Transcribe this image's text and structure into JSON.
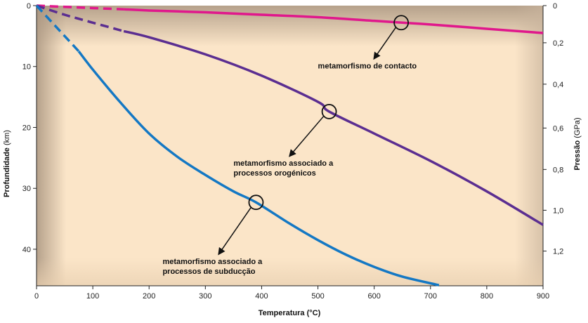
{
  "chart_data": {
    "type": "line",
    "xlabel": "Temperatura (°C)",
    "ylabel_left_bold": "Profundidade",
    "ylabel_left_unit": "(km)",
    "ylabel_right_bold": "Pressão",
    "ylabel_right_unit": "(GPa)",
    "xlim": [
      0,
      900
    ],
    "ylim": [
      0,
      46
    ],
    "x_ticks": [
      0,
      100,
      200,
      300,
      400,
      500,
      600,
      700,
      800,
      900
    ],
    "y_ticks_left": [
      0,
      10,
      20,
      30,
      40
    ],
    "y_ticks_right": [
      "0",
      "0,2",
      "0,4",
      "0,6",
      "0,8",
      "1,0",
      "1,2"
    ],
    "y_ticks_right_positions_km": [
      0,
      6.1,
      12.9,
      20.1,
      26.9,
      33.6,
      40.3
    ],
    "series": [
      {
        "name": "metamorfismo de contacto",
        "color": "#e0188c",
        "dashed_until_x": 155,
        "points": [
          [
            0,
            0
          ],
          [
            100,
            0.4
          ],
          [
            155,
            0.6
          ],
          [
            200,
            0.8
          ],
          [
            300,
            1.1
          ],
          [
            400,
            1.5
          ],
          [
            500,
            1.9
          ],
          [
            600,
            2.5
          ],
          [
            650,
            2.8
          ],
          [
            700,
            3.1
          ],
          [
            800,
            3.8
          ],
          [
            900,
            4.5
          ]
        ],
        "marker_at": [
          648,
          2.8
        ],
        "annotation_lines": [
          "metamorfismo de contacto"
        ],
        "annotation_anchor": [
          500,
          10.3
        ]
      },
      {
        "name": "metamorfismo associado a processos orogénicos",
        "color": "#5b2e91",
        "dashed_until_x": 155,
        "points": [
          [
            0,
            0
          ],
          [
            50,
            1.5
          ],
          [
            100,
            2.8
          ],
          [
            155,
            4.2
          ],
          [
            200,
            5.2
          ],
          [
            300,
            8.0
          ],
          [
            400,
            11.5
          ],
          [
            500,
            15.8
          ],
          [
            520,
            17.4
          ],
          [
            600,
            21.0
          ],
          [
            700,
            25.5
          ],
          [
            800,
            30.5
          ],
          [
            900,
            36.0
          ]
        ],
        "marker_at": [
          520,
          17.4
        ],
        "annotation_lines": [
          "metamorfismo associado a",
          "processos orogénicos"
        ],
        "annotation_anchor": [
          350,
          26.3
        ]
      },
      {
        "name": "metamorfismo associado a processos de subducção",
        "color": "#1478c4",
        "dashed_until_x": 75,
        "points": [
          [
            0,
            0
          ],
          [
            40,
            4.0
          ],
          [
            75,
            7.5
          ],
          [
            100,
            10.5
          ],
          [
            150,
            16.0
          ],
          [
            200,
            21.0
          ],
          [
            250,
            24.8
          ],
          [
            300,
            27.8
          ],
          [
            350,
            30.5
          ],
          [
            390,
            32.3
          ],
          [
            450,
            35.8
          ],
          [
            500,
            38.5
          ],
          [
            550,
            40.9
          ],
          [
            600,
            42.9
          ],
          [
            650,
            44.5
          ],
          [
            715,
            45.9
          ]
        ],
        "marker_at": [
          390,
          32.3
        ],
        "annotation_lines": [
          "metamorfismo associado a",
          "processos de subducção"
        ],
        "annotation_anchor": [
          224,
          42.4
        ]
      }
    ],
    "grid": false,
    "legend": "none"
  },
  "colors": {
    "plot_background": "#fbe5c8",
    "edge_shade": "#b9a38e",
    "axis": "#222222"
  }
}
